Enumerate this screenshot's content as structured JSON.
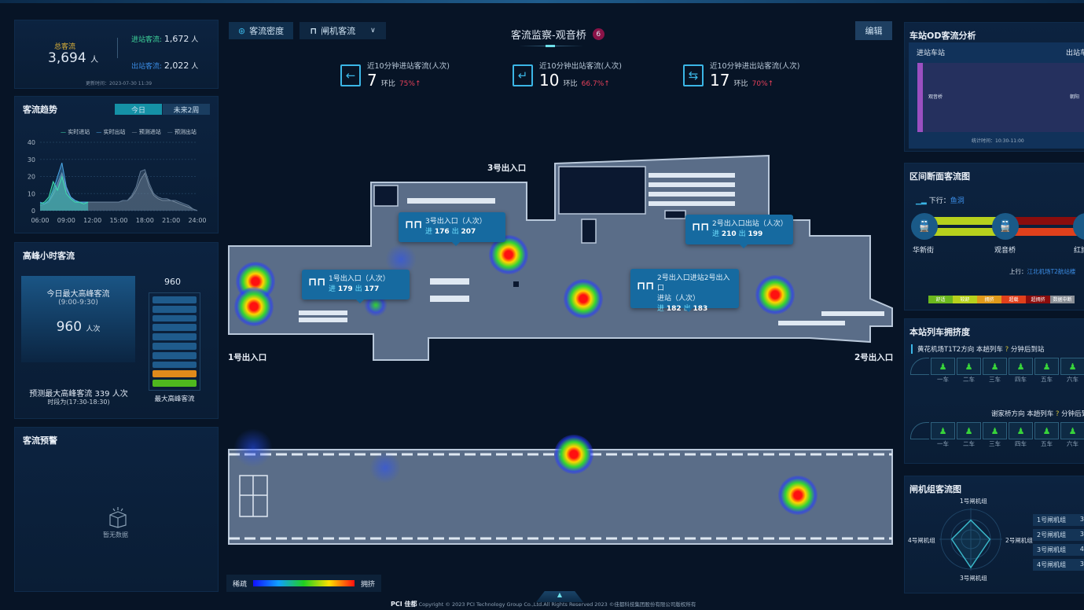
{
  "summary": {
    "total_label": "总客流",
    "total_value": "3,694",
    "total_unit": "人",
    "in_label": "进站客流:",
    "in_value": "1,672",
    "in_unit": "人",
    "out_label": "出站客流:",
    "out_value": "2,022",
    "out_unit": "人",
    "update_time": "更新时间：2023-07-30 11:39"
  },
  "trend": {
    "title": "客流趋势",
    "tabs": [
      "今日",
      "未来2周"
    ],
    "active_tab": 0
  },
  "chart_data": {
    "type": "area",
    "title": "",
    "xlabel": "",
    "ylabel": "",
    "x": [
      "06:00",
      "06:30",
      "07:00",
      "07:30",
      "08:00",
      "08:30",
      "09:00",
      "09:30",
      "10:00",
      "10:30",
      "11:00",
      "11:30",
      "12:00",
      "12:30",
      "13:00",
      "13:30",
      "14:00",
      "14:30",
      "15:00",
      "15:30",
      "16:00",
      "16:30",
      "17:00",
      "17:30",
      "18:00",
      "18:30",
      "19:00",
      "19:30",
      "20:00",
      "20:30",
      "21:00",
      "21:30",
      "22:00",
      "22:30",
      "23:00",
      "23:30",
      "24:00"
    ],
    "xticks": [
      "06:00",
      "09:00",
      "12:00",
      "15:00",
      "18:00",
      "21:00",
      "24:00"
    ],
    "yticks": [
      0,
      10,
      20,
      30,
      40
    ],
    "ylim": [
      0,
      40
    ],
    "grid": true,
    "legend_position": "top",
    "series": [
      {
        "name": "实时进站",
        "color": "#3fe0b0",
        "values": [
          4,
          5,
          8,
          17,
          12,
          20,
          10,
          7,
          5,
          5,
          4,
          5,
          null,
          null,
          null,
          null,
          null,
          null,
          null,
          null,
          null,
          null,
          null,
          null,
          null,
          null,
          null,
          null,
          null,
          null,
          null,
          null,
          null,
          null,
          null,
          null,
          null
        ]
      },
      {
        "name": "实时出站",
        "color": "#4aa7e6",
        "values": [
          5,
          4,
          6,
          12,
          20,
          28,
          14,
          8,
          6,
          5,
          5,
          5,
          null,
          null,
          null,
          null,
          null,
          null,
          null,
          null,
          null,
          null,
          null,
          null,
          null,
          null,
          null,
          null,
          null,
          null,
          null,
          null,
          null,
          null,
          null,
          null,
          null
        ]
      },
      {
        "name": "预测进站",
        "color": "#7f8fa0",
        "values": [
          3,
          4,
          5,
          10,
          16,
          22,
          13,
          8,
          6,
          5,
          5,
          5,
          5,
          5,
          5,
          5,
          5,
          5,
          5,
          6,
          6,
          8,
          12,
          18,
          22,
          14,
          9,
          7,
          6,
          6,
          6,
          5,
          4,
          3,
          2,
          1,
          0
        ]
      },
      {
        "name": "预测出站",
        "color": "#5f7893",
        "values": [
          3,
          4,
          5,
          9,
          14,
          20,
          12,
          8,
          6,
          5,
          5,
          5,
          5,
          5,
          5,
          5,
          5,
          5,
          5,
          6,
          6,
          9,
          14,
          23,
          24,
          16,
          10,
          8,
          7,
          7,
          6,
          6,
          5,
          4,
          3,
          1,
          0
        ]
      }
    ]
  },
  "peak": {
    "title": "高峰小时客流",
    "today_label": "今日最大高峰客流",
    "today_period": "(9:00-9:30)",
    "today_value": "960",
    "today_unit": "人次",
    "bar_value": "960",
    "bar_label": "最大高峰客流",
    "bar_fill_percent": 20,
    "forecast_line": "预测最大高峰客流 339 人次",
    "forecast_period": "时段为(17:30-18:30)"
  },
  "warning": {
    "title": "客流预警",
    "empty_text": "暂无数据"
  },
  "toolbar": {
    "density_label": "客流密度",
    "gate_label": "闸机客流",
    "edit_label": "编辑"
  },
  "header": {
    "title": "客流监察-观音桥",
    "badge": "6"
  },
  "stats": [
    {
      "label": "近10分钟进站客流(人次)",
      "value": "7",
      "ratio_label": "环比",
      "ratio": "75%",
      "arrow": "↑"
    },
    {
      "label": "近10分钟出站客流(人次)",
      "value": "10",
      "ratio_label": "环比",
      "ratio": "66.7%",
      "arrow": "↑"
    },
    {
      "label": "近10分钟进出站客流(人次)",
      "value": "17",
      "ratio_label": "环比",
      "ratio": "70%",
      "arrow": "↑"
    }
  ],
  "map": {
    "labels": {
      "exit3": "3号出入口",
      "exit1": "1号出入口",
      "exit2": "2号出入口"
    },
    "in_label": "进",
    "out_label": "出",
    "tooltips": [
      {
        "title": "3号出入口（人次）",
        "in": "176",
        "out": "207"
      },
      {
        "title": "1号出入口（人次）",
        "in": "179",
        "out": "177"
      },
      {
        "title": "2号出入口出站（人次）",
        "in": "210",
        "out": "199"
      },
      {
        "title": "2号出入口进站2号出入口",
        "title2": "进站（人次）",
        "in": "182",
        "out": "183"
      }
    ],
    "legend": {
      "low": "稀疏",
      "high": "拥挤"
    }
  },
  "footer": {
    "logo": "PCI 佳都",
    "copyright": "Copyright © 2023 PCI Technology Group Co.,Ltd.All Rights Reserved 2023 ©佳都科技集团股份有限公司版权所有"
  },
  "od": {
    "title": "车站OD客流分析",
    "in_header": "进站车站",
    "out_header": "出站车",
    "in_station": "观音桥",
    "out_station": "朝阳",
    "stat_time": "统计时间：10:30-11:00",
    "bar_color": "#9b4fc0"
  },
  "section": {
    "title": "区间断面客流图",
    "down_label": "下行：",
    "down_dest": "鱼洞",
    "up_label": "上行：",
    "up_dest": "江北机场T2航站楼",
    "stations": [
      "华新街",
      "观音桥",
      "红旗"
    ],
    "legend": [
      {
        "label": "舒适",
        "color": "#6cb81e"
      },
      {
        "label": "较舒",
        "color": "#b7d11d"
      },
      {
        "label": "拥挤",
        "color": "#e09a1b"
      },
      {
        "label": "超载",
        "color": "#e0401c"
      },
      {
        "label": "超拥挤",
        "color": "#8b0d0d"
      },
      {
        "label": "数据中断",
        "color": "#8a8f96"
      }
    ]
  },
  "crowd": {
    "title": "本站列车拥挤度",
    "dir1": "黄花机场T1T2方向  本趟列车",
    "dir2": "谢家桥方向  本趟列车",
    "unknown": "?",
    "after": "分钟后到站",
    "cars": [
      "一车",
      "二车",
      "三车",
      "四车",
      "五车",
      "六车"
    ]
  },
  "gates": {
    "title": "闸机组客流图",
    "groups": [
      "1号闸机组",
      "2号闸机组",
      "3号闸机组",
      "4号闸机组"
    ],
    "values": [
      "3",
      "3",
      "4",
      "3"
    ]
  }
}
